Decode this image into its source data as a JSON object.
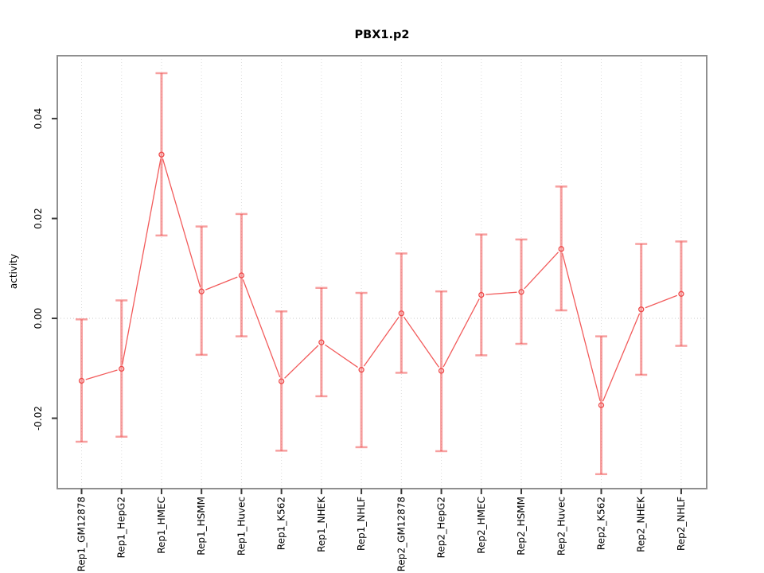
{
  "title": "PBX1.p2",
  "chart_data": {
    "type": "line",
    "title": "PBX1.p2",
    "xlabel": "",
    "ylabel": "activity",
    "categories": [
      "Rep1_GM12878",
      "Rep1_HepG2",
      "Rep1_HMEC",
      "Rep1_HSMM",
      "Rep1_Huvec",
      "Rep1_K562",
      "Rep1_NHEK",
      "Rep1_NHLF",
      "Rep2_GM12878",
      "Rep2_HepG2",
      "Rep2_HMEC",
      "Rep2_HSMM",
      "Rep2_Huvec",
      "Rep2_K562",
      "Rep2_NHEK",
      "Rep2_NHLF"
    ],
    "series": [
      {
        "name": "activity",
        "values": [
          -0.0125,
          -0.0101,
          0.0328,
          0.0054,
          0.0086,
          -0.0126,
          -0.0048,
          -0.0103,
          0.001,
          -0.0105,
          0.0047,
          0.0053,
          0.0139,
          -0.0174,
          0.0018,
          0.0049
        ],
        "error_low": [
          -0.0247,
          -0.0237,
          0.0166,
          -0.0073,
          -0.0036,
          -0.0265,
          -0.0156,
          -0.0258,
          -0.0109,
          -0.0266,
          -0.0074,
          -0.0051,
          0.0016,
          -0.0312,
          -0.0113,
          -0.0055
        ],
        "error_high": [
          -0.0002,
          0.0036,
          0.0491,
          0.0184,
          0.0209,
          0.0014,
          0.0061,
          0.0051,
          0.013,
          0.0054,
          0.0168,
          0.0158,
          0.0264,
          -0.0036,
          0.0149,
          0.0154
        ]
      }
    ],
    "yticks": [
      -0.02,
      0.0,
      0.02,
      0.04
    ],
    "ytick_labels": [
      "-0.02",
      "0.00",
      "0.02",
      "0.04"
    ],
    "ylim": [
      -0.0341,
      0.0526
    ],
    "grid": "vertical dotted gridline at each category; horizontal dotted line at y=0",
    "legend": "none",
    "marker": "open-circle",
    "colors": {
      "line": "#f25b5b",
      "point": "#ee4747",
      "error_bar": "rgba(240,80,80,0.55)",
      "gridline": "#dcdcdc",
      "zero_line": "#c9c9c9",
      "box": "#8f8f8f",
      "tick": "#3a3a3a",
      "text": "#000000",
      "background": "#ffffff"
    }
  }
}
